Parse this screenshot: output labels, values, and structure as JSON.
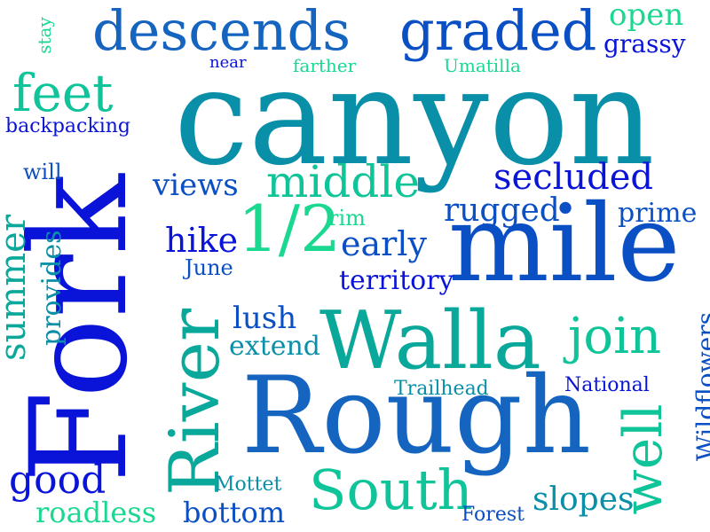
{
  "palette": {
    "deep_blue": "#0a14d8",
    "mid_blue": "#0a4fc4",
    "blue": "#1565c0",
    "teal_blue": "#0a8fa8",
    "teal": "#0aa89a",
    "green_teal": "#10c49a",
    "mint": "#1bd890"
  },
  "words": {
    "canyon": "canyon",
    "fork": "Fork",
    "rough": "Rough",
    "mile": "mile",
    "walla": "Walla",
    "river": "River",
    "south": "South",
    "descends": "descends",
    "graded": "graded",
    "feet": "feet",
    "half": "1/2",
    "middle": "middle",
    "join": "join",
    "well": "well",
    "secluded": "secluded",
    "rugged": "rugged",
    "early": "early",
    "hike": "hike",
    "views": "views",
    "open": "open",
    "grassy": "grassy",
    "summer": "summer",
    "provides": "provides",
    "good": "good",
    "roadless": "roadless",
    "bottom": "bottom",
    "slopes": "slopes",
    "territory": "territory",
    "prime": "prime",
    "lush": "lush",
    "extend": "extend",
    "wildflowers": "Wildflowers",
    "stay": "stay",
    "backpacking": "backpacking",
    "will": "will",
    "near": "near",
    "farther": "farther",
    "umatilla": "Umatilla",
    "rim": "rim",
    "june": "June",
    "trailhead": "Trailhead",
    "national": "National",
    "mottet": "Mottet",
    "forest": "Forest"
  }
}
